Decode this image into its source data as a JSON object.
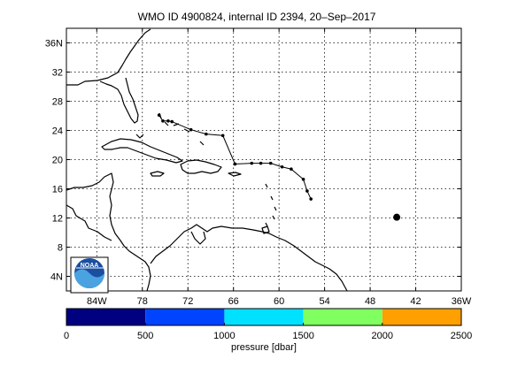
{
  "title": "WMO ID 4900824, internal ID 2394, 20–Sep–2017",
  "map": {
    "lon_range": [
      -88,
      -36
    ],
    "lat_range": [
      2,
      38
    ],
    "grid": true,
    "lon_ticks": [
      "84W",
      "78",
      "72",
      "66",
      "60",
      "54",
      "48",
      "42",
      "36W"
    ],
    "lon_tick_values": [
      -84,
      -78,
      -72,
      -66,
      -60,
      -54,
      -48,
      -42,
      -36
    ],
    "lat_ticks": [
      "36N",
      "32",
      "28",
      "24",
      "20",
      "16",
      "12",
      "8",
      "4N"
    ],
    "lat_tick_values": [
      36,
      32,
      28,
      24,
      20,
      16,
      12,
      8,
      4
    ],
    "logo_text": "NOAA"
  },
  "track": {
    "points": [
      [
        -75.8,
        26.1
      ],
      [
        -75.3,
        25.3
      ],
      [
        -74.6,
        25.3
      ],
      [
        -74.1,
        25.2
      ],
      [
        -71.6,
        24.1
      ],
      [
        -69.6,
        23.5
      ],
      [
        -67.4,
        23.3
      ],
      [
        -65.8,
        19.4
      ],
      [
        -63.6,
        19.5
      ],
      [
        -62.4,
        19.5
      ],
      [
        -61.1,
        19.5
      ],
      [
        -59.6,
        19.0
      ],
      [
        -58.4,
        18.7
      ],
      [
        -56.8,
        17.3
      ],
      [
        -56.3,
        15.7
      ],
      [
        -55.8,
        14.6
      ]
    ],
    "current_position": [
      -44.5,
      12.1
    ]
  },
  "colorbar": {
    "label": "pressure [dbar]",
    "range": [
      0,
      2500
    ],
    "ticks": [
      "0",
      "500",
      "1000",
      "1500",
      "2000",
      "2500"
    ],
    "tick_values": [
      0,
      500,
      1000,
      1500,
      2000,
      2500
    ],
    "colors": [
      "#000080",
      "#0044ff",
      "#00e0ff",
      "#80ff60",
      "#ffa000"
    ]
  }
}
